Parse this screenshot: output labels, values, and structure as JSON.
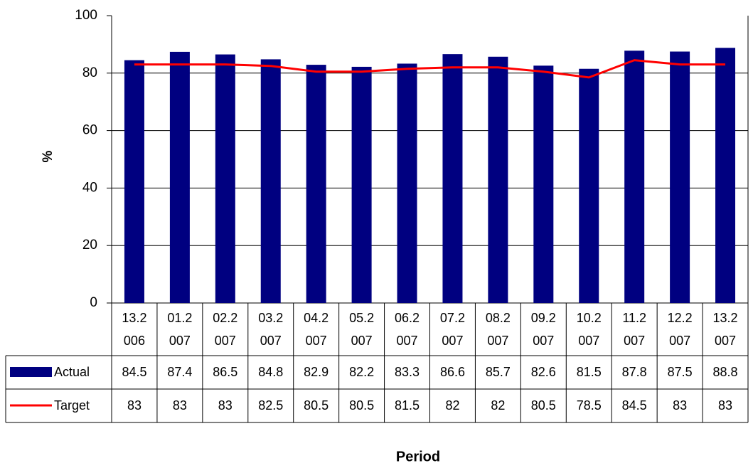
{
  "chart_data": {
    "type": "bar",
    "x_label": "Period",
    "y_label": "%",
    "categories": [
      "13.2006",
      "01.2007",
      "02.2007",
      "03.2007",
      "04.2007",
      "05.2007",
      "06.2007",
      "07.2007",
      "08.2007",
      "09.2007",
      "10.2007",
      "11.2007",
      "12.2007",
      "13.2007"
    ],
    "series": [
      {
        "name": "Actual",
        "type": "bar",
        "color": "#000080",
        "values": [
          84.5,
          87.4,
          86.5,
          84.8,
          82.9,
          82.2,
          83.3,
          86.6,
          85.7,
          82.6,
          81.5,
          87.8,
          87.5,
          88.8
        ]
      },
      {
        "name": "Target",
        "type": "line",
        "color": "#ff0000",
        "values": [
          83,
          83,
          83,
          82.5,
          80.5,
          80.5,
          81.5,
          82,
          82,
          80.5,
          78.5,
          84.5,
          83,
          83
        ]
      }
    ],
    "ylim": [
      0,
      100
    ],
    "yticks": [
      0,
      20,
      40,
      60,
      80,
      100
    ],
    "grid": true
  }
}
